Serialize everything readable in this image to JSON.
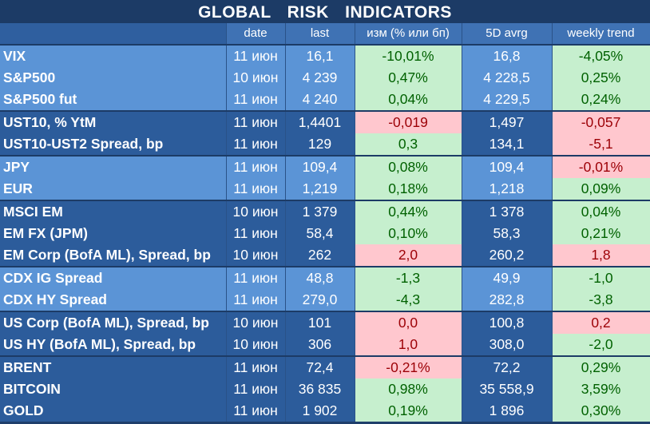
{
  "title": "GLOBAL   RISK   INDICATORS",
  "headers": [
    "",
    "date",
    "last",
    "изм (% или бп)",
    "5D avrg",
    "weekly trend"
  ],
  "colors": {
    "positive_bg": "#c6efce",
    "positive_text": "#006100",
    "negative_bg": "#ffc7ce",
    "negative_text": "#9c0006"
  },
  "rows": [
    {
      "name": "VIX",
      "date": "11 июн",
      "last": "16,1",
      "chg": "-10,01%",
      "avg": "16,8",
      "trend": "-4,05%",
      "chg_tone": "pos",
      "trend_tone": "pos"
    },
    {
      "name": "S&P500",
      "date": "10 июн",
      "last": "4 239",
      "chg": "0,47%",
      "avg": "4 228,5",
      "trend": "0,25%",
      "chg_tone": "pos",
      "trend_tone": "pos"
    },
    {
      "name": "S&P500 fut",
      "date": "11 июн",
      "last": "4 240",
      "chg": "0,04%",
      "avg": "4 229,5",
      "trend": "0,24%",
      "chg_tone": "pos",
      "trend_tone": "pos"
    },
    {
      "name": "UST10, % YtM",
      "date": "11 июн",
      "last": "1,4401",
      "chg": "-0,019",
      "avg": "1,497",
      "trend": "-0,057",
      "chg_tone": "neg",
      "trend_tone": "neg"
    },
    {
      "name": "UST10-UST2 Spread, bp",
      "date": "11 июн",
      "last": "129",
      "chg": "0,3",
      "avg": "134,1",
      "trend": "-5,1",
      "chg_tone": "pos",
      "trend_tone": "neg"
    },
    {
      "name": "JPY",
      "date": "11 июн",
      "last": "109,4",
      "chg": "0,08%",
      "avg": "109,4",
      "trend": "-0,01%",
      "chg_tone": "pos",
      "trend_tone": "neg"
    },
    {
      "name": "EUR",
      "date": "11 июн",
      "last": "1,219",
      "chg": "0,18%",
      "avg": "1,218",
      "trend": "0,09%",
      "chg_tone": "pos",
      "trend_tone": "pos"
    },
    {
      "name": "MSCI EM",
      "date": "10 июн",
      "last": "1 379",
      "chg": "0,44%",
      "avg": "1 378",
      "trend": "0,04%",
      "chg_tone": "pos",
      "trend_tone": "pos"
    },
    {
      "name": "EM FX (JPM)",
      "date": "11 июн",
      "last": "58,4",
      "chg": "0,10%",
      "avg": "58,3",
      "trend": "0,21%",
      "chg_tone": "pos",
      "trend_tone": "pos"
    },
    {
      "name": "EM Corp (BofA ML), Spread, bp",
      "date": "10 июн",
      "last": "262",
      "chg": "2,0",
      "avg": "260,2",
      "trend": "1,8",
      "chg_tone": "neg",
      "trend_tone": "neg"
    },
    {
      "name": "CDX IG Spread",
      "date": "11 июн",
      "last": "48,8",
      "chg": "-1,3",
      "avg": "49,9",
      "trend": "-1,0",
      "chg_tone": "pos",
      "trend_tone": "pos"
    },
    {
      "name": "CDX HY Spread",
      "date": "11 июн",
      "last": "279,0",
      "chg": "-4,3",
      "avg": "282,8",
      "trend": "-3,8",
      "chg_tone": "pos",
      "trend_tone": "pos"
    },
    {
      "name": "US Corp (BofA ML), Spread, bp",
      "date": "10 июн",
      "last": "101",
      "chg": "0,0",
      "avg": "100,8",
      "trend": "0,2",
      "chg_tone": "neg",
      "trend_tone": "neg"
    },
    {
      "name": "US HY (BofA ML), Spread, bp",
      "date": "10 июн",
      "last": "306",
      "chg": "1,0",
      "avg": "308,0",
      "trend": "-2,0",
      "chg_tone": "neg",
      "trend_tone": "pos"
    },
    {
      "name": "BRENT",
      "date": "11 июн",
      "last": "72,4",
      "chg": "-0,21%",
      "avg": "72,2",
      "trend": "0,29%",
      "chg_tone": "neg",
      "trend_tone": "pos"
    },
    {
      "name": "BITCOIN",
      "date": "11 июн",
      "last": "36 835",
      "chg": "0,98%",
      "avg": "35 558,9",
      "trend": "3,59%",
      "chg_tone": "pos",
      "trend_tone": "pos"
    },
    {
      "name": "GOLD",
      "date": "11 июн",
      "last": "1 902",
      "chg": "0,19%",
      "avg": "1 896",
      "trend": "0,30%",
      "chg_tone": "pos",
      "trend_tone": "pos"
    }
  ]
}
